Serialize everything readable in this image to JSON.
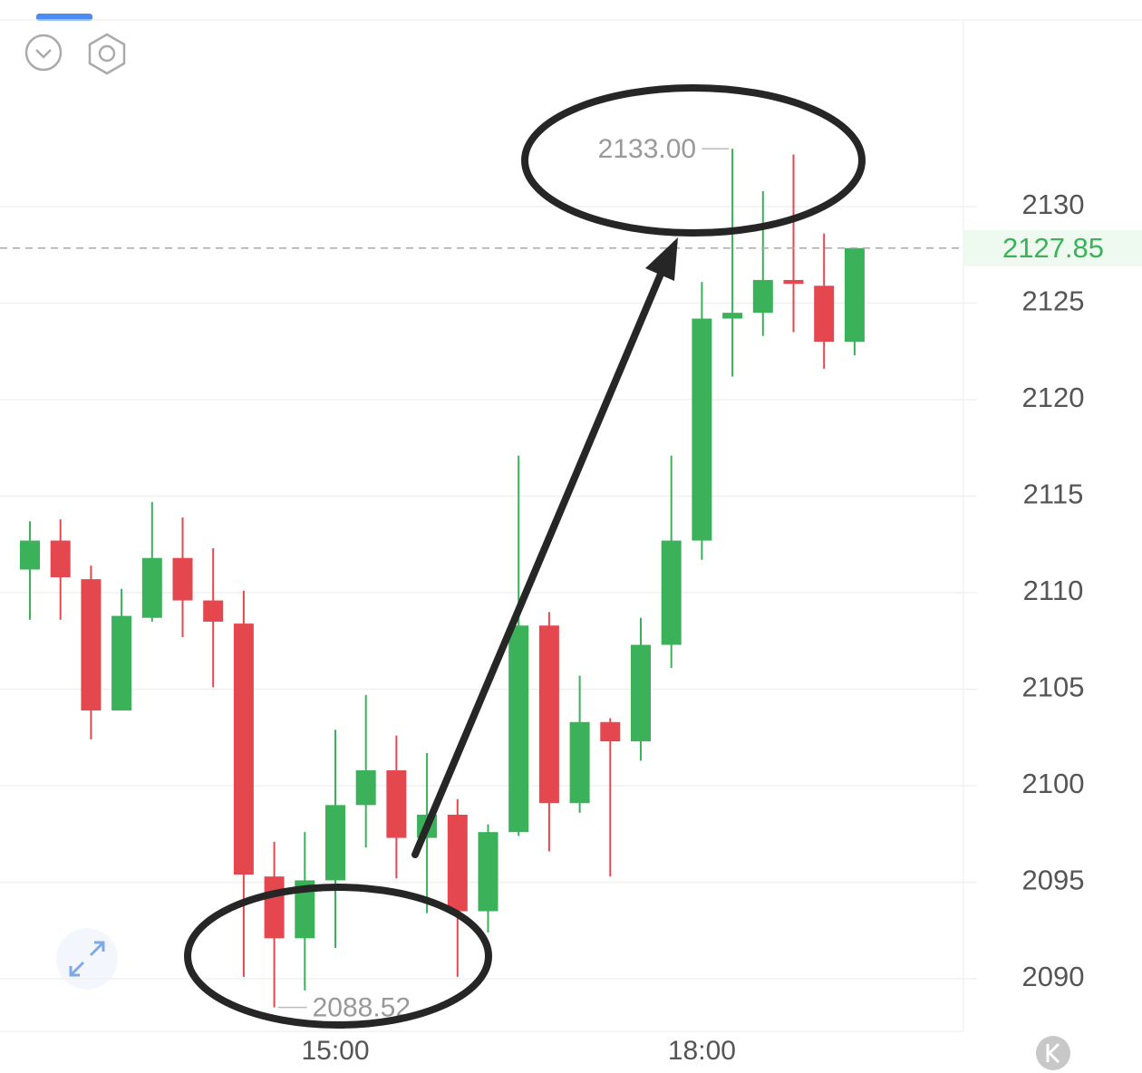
{
  "chart_data": {
    "type": "candlestick",
    "categories": [
      null,
      null,
      null,
      null,
      null,
      null,
      null,
      null,
      null,
      null,
      "15:00",
      null,
      null,
      null,
      null,
      null,
      null,
      null,
      null,
      null,
      null,
      null,
      "18:00",
      null,
      null,
      null,
      null,
      null
    ],
    "open": [
      2111.2,
      2112.7,
      2110.7,
      2103.9,
      2108.7,
      2111.8,
      2109.6,
      2108.4,
      2095.3,
      2092.1,
      2095.1,
      2099.0,
      2100.8,
      2097.3,
      2098.5,
      2093.5,
      2097.6,
      2108.3,
      2099.1,
      2103.3,
      2102.3,
      2107.3,
      2112.7,
      2124.2,
      2124.5,
      2126.2,
      2125.9,
      2123.0
    ],
    "high": [
      2113.7,
      2113.8,
      2111.4,
      2110.2,
      2114.7,
      2113.9,
      2112.3,
      2110.1,
      2097.1,
      2097.6,
      2102.9,
      2104.7,
      2102.6,
      2101.7,
      2099.3,
      2098.0,
      2117.1,
      2109.0,
      2105.7,
      2103.5,
      2108.7,
      2117.1,
      2126.1,
      2133.0,
      2130.8,
      2132.7,
      2128.6,
      2127.85
    ],
    "low": [
      2108.6,
      2108.6,
      2102.4,
      2103.9,
      2108.5,
      2107.7,
      2105.1,
      2090.1,
      2088.52,
      2089.4,
      2091.6,
      2096.8,
      2095.2,
      2093.4,
      2090.1,
      2092.4,
      2097.4,
      2096.6,
      2098.6,
      2095.3,
      2101.3,
      2106.1,
      2111.7,
      2121.2,
      2123.3,
      2123.5,
      2121.6,
      2122.3
    ],
    "close": [
      2112.7,
      2110.8,
      2103.9,
      2108.8,
      2111.8,
      2109.6,
      2108.5,
      2095.4,
      2092.1,
      2095.1,
      2099.0,
      2100.8,
      2097.3,
      2098.5,
      2093.5,
      2097.6,
      2108.3,
      2099.1,
      2103.3,
      2102.3,
      2107.3,
      2112.7,
      2124.2,
      2124.5,
      2126.2,
      2126.0,
      2123.0,
      2127.85
    ],
    "up_color": "#3bb15a",
    "down_color": "#e5474f",
    "ylim": [
      2087.28,
      2139.67
    ],
    "yticks": [
      2090,
      2095,
      2100,
      2105,
      2110,
      2115,
      2120,
      2125,
      2130
    ],
    "grid": true,
    "last_price": {
      "value": 2127.85,
      "label": "2127.85"
    },
    "annotations": [
      {
        "value": 2133.0,
        "label": "2133.00"
      },
      {
        "value": 2088.52,
        "label": "2088.52"
      }
    ]
  }
}
